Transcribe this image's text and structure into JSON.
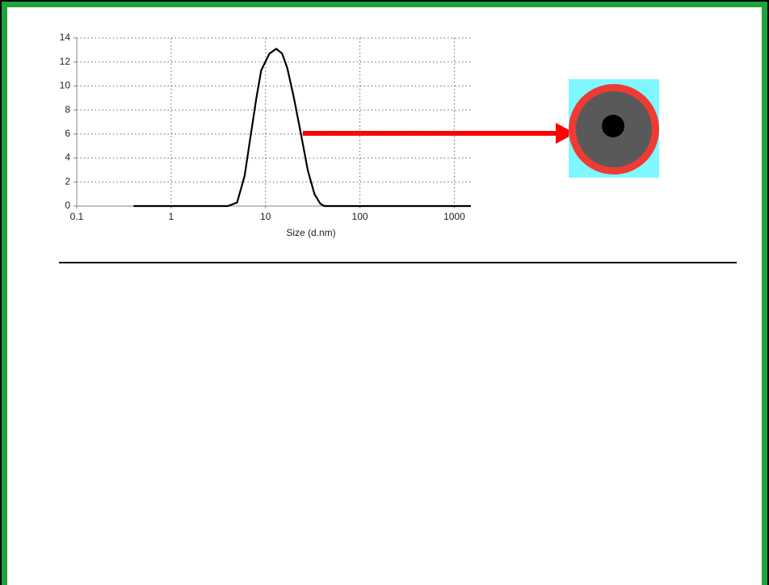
{
  "chart_data": {
    "type": "line",
    "xlabel": "Size (d.nm)",
    "x": [
      0.4,
      4,
      5,
      6,
      7,
      8,
      9,
      11,
      13,
      15,
      17,
      20,
      24,
      28,
      33,
      38,
      42,
      1500
    ],
    "values": [
      0,
      0,
      0.3,
      2.5,
      6,
      9,
      11.3,
      12.7,
      13.1,
      12.7,
      11.5,
      9,
      5.8,
      3,
      1,
      0.2,
      0,
      0
    ],
    "color": "#000000",
    "xscale": "log",
    "xlim": [
      0.1,
      1500
    ],
    "xticks": [
      0.1,
      1,
      10,
      100,
      1000
    ],
    "ylim": [
      0,
      14
    ],
    "yticks": [
      0,
      2,
      4,
      6,
      8,
      10,
      12,
      14
    ],
    "grid": true
  }
}
